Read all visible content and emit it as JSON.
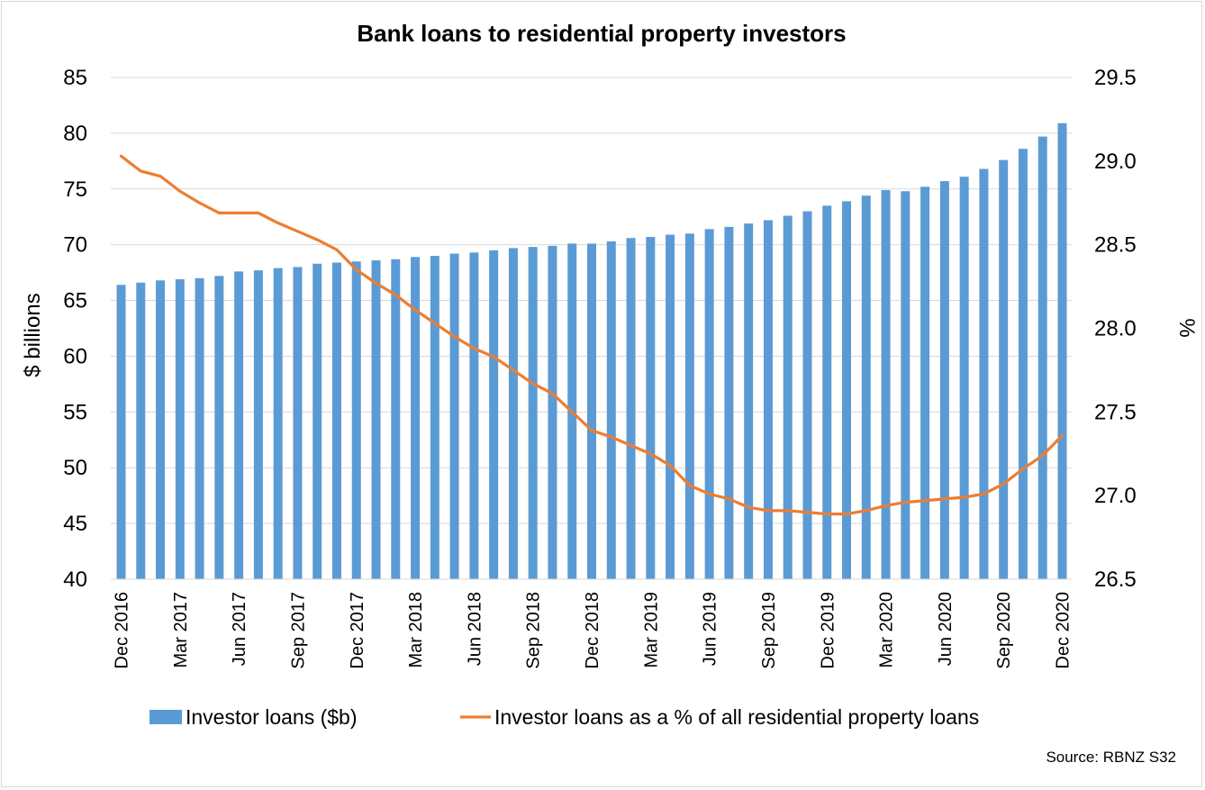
{
  "chart_data": {
    "type": "bar+line",
    "title": "Bank loans to residential property investors",
    "ylabel_left": "$ billions",
    "ylabel_right": "%",
    "ylim_left": [
      40,
      85
    ],
    "ylim_right": [
      26.5,
      29.5
    ],
    "yticks_left": [
      "40",
      "45",
      "50",
      "55",
      "60",
      "65",
      "70",
      "75",
      "80",
      "85"
    ],
    "yticks_right": [
      "26.5",
      "27.0",
      "27.5",
      "28.0",
      "28.5",
      "29.0",
      "29.5"
    ],
    "grid": true,
    "legend_position": "bottom",
    "x_tick_labels": [
      "Dec 2016",
      "Mar 2017",
      "Jun 2017",
      "Sep 2017",
      "Dec 2017",
      "Mar 2018",
      "Jun 2018",
      "Sep 2018",
      "Dec 2018",
      "Mar 2019",
      "Jun 2019",
      "Sep 2019",
      "Dec 2019",
      "Mar 2020",
      "Jun 2020",
      "Sep 2020",
      "Dec 2020"
    ],
    "series": [
      {
        "name": "Investor loans ($b)",
        "type": "bar",
        "axis": "left",
        "color": "#5b9bd5",
        "values": [
          66.4,
          66.6,
          66.8,
          66.9,
          67.0,
          67.2,
          67.6,
          67.7,
          67.9,
          68.0,
          68.3,
          68.4,
          68.5,
          68.6,
          68.7,
          68.9,
          69.0,
          69.2,
          69.3,
          69.5,
          69.7,
          69.8,
          69.9,
          70.1,
          70.1,
          70.3,
          70.6,
          70.7,
          70.9,
          71.0,
          71.4,
          71.6,
          71.9,
          72.2,
          72.6,
          73.0,
          73.5,
          73.9,
          74.4,
          74.9,
          74.8,
          75.2,
          75.7,
          76.1,
          76.8,
          77.6,
          78.6,
          79.7,
          80.9
        ]
      },
      {
        "name": "Investor loans as a % of all residential property loans",
        "type": "line",
        "axis": "right",
        "color": "#ed7d31",
        "values": [
          29.03,
          28.94,
          28.91,
          28.82,
          28.75,
          28.69,
          28.69,
          28.69,
          28.63,
          28.58,
          28.53,
          28.47,
          28.35,
          28.27,
          28.2,
          28.11,
          28.03,
          27.95,
          27.88,
          27.83,
          27.75,
          27.67,
          27.61,
          27.5,
          27.39,
          27.35,
          27.3,
          27.25,
          27.18,
          27.06,
          27.01,
          26.98,
          26.93,
          26.91,
          26.91,
          26.9,
          26.89,
          26.89,
          26.91,
          26.94,
          26.96,
          26.97,
          26.98,
          26.99,
          27.01,
          27.07,
          27.16,
          27.24,
          27.36
        ]
      }
    ],
    "source": "Source: RBNZ S32"
  }
}
